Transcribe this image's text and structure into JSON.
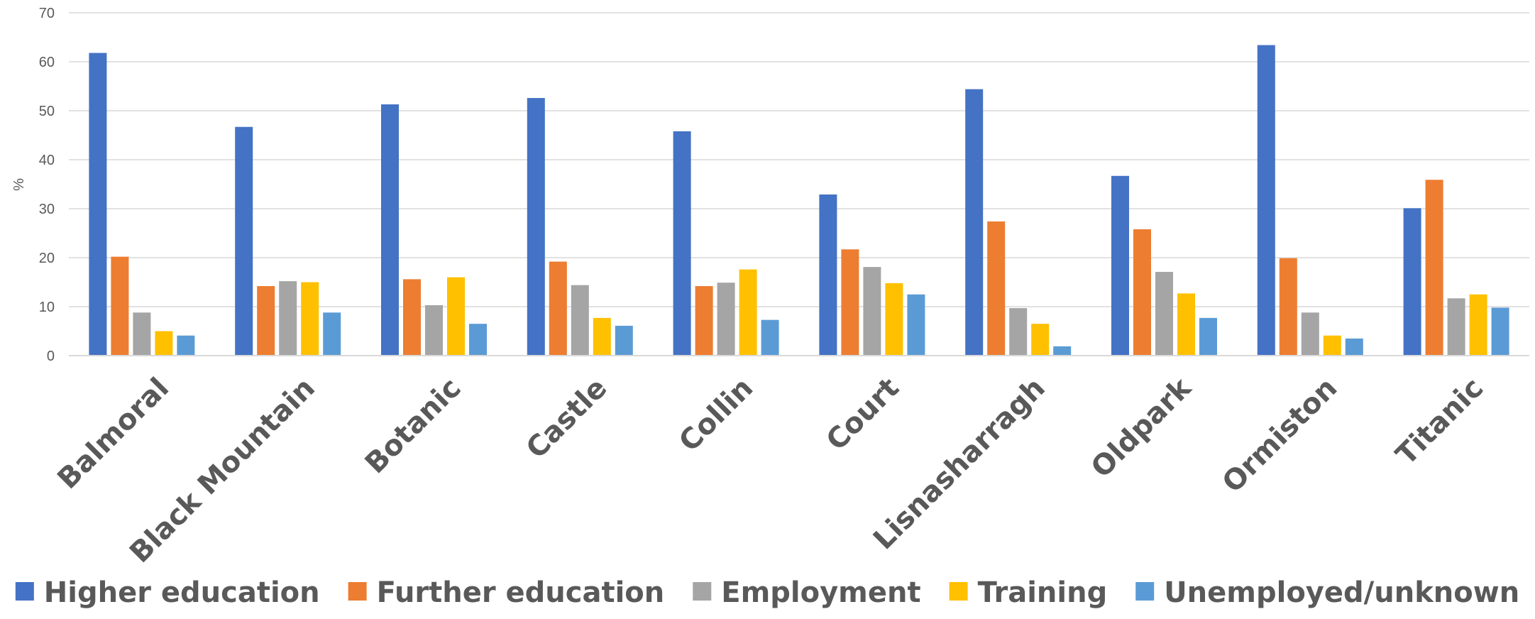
{
  "chart_data": {
    "type": "bar",
    "title": "",
    "xlabel": "",
    "ylabel": "%",
    "ylim": [
      0,
      70
    ],
    "yticks": [
      0,
      10,
      20,
      30,
      40,
      50,
      60,
      70
    ],
    "grid": true,
    "legend_position": "bottom",
    "categories": [
      "Balmoral",
      "Black Mountain",
      "Botanic",
      "Castle",
      "Collin",
      "Court",
      "Lisnasharragh",
      "Oldpark",
      "Ormiston",
      "Titanic"
    ],
    "series": [
      {
        "name": "Higher education",
        "color": "#4472C4",
        "values": [
          61.8,
          46.7,
          51.3,
          52.6,
          45.8,
          32.9,
          54.4,
          36.7,
          63.4,
          30.1
        ]
      },
      {
        "name": "Further education",
        "color": "#ED7D31",
        "values": [
          20.2,
          14.2,
          15.6,
          19.2,
          14.2,
          21.7,
          27.4,
          25.8,
          19.9,
          35.9
        ]
      },
      {
        "name": "Employment",
        "color": "#A5A5A5",
        "values": [
          8.8,
          15.2,
          10.3,
          14.4,
          14.9,
          18.1,
          9.7,
          17.1,
          8.8,
          11.7
        ]
      },
      {
        "name": "Training",
        "color": "#FFC000",
        "values": [
          5.0,
          15.0,
          16.0,
          7.7,
          17.6,
          14.8,
          6.5,
          12.7,
          4.1,
          12.5
        ]
      },
      {
        "name": "Unemployed/unknown",
        "color": "#5B9BD5",
        "values": [
          4.1,
          8.8,
          6.5,
          6.1,
          7.3,
          12.5,
          1.9,
          7.7,
          3.5,
          9.8
        ]
      }
    ]
  }
}
